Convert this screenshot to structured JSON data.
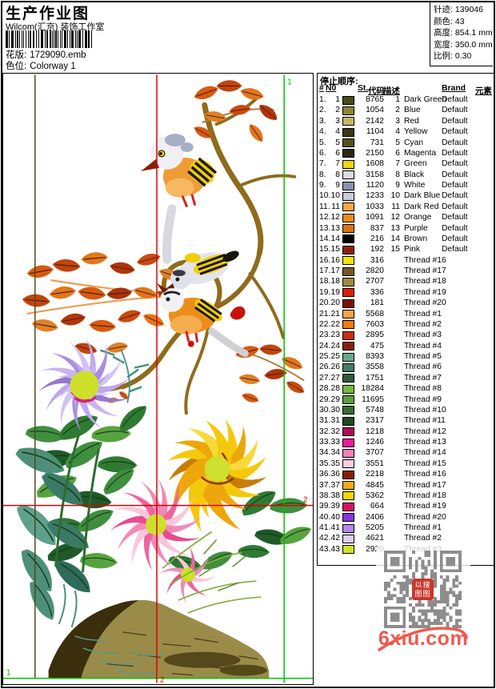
{
  "header": {
    "title": "生产作业图",
    "studio": "Wilcom(汇京) 装饰工作室",
    "design_label": "花版:",
    "design_value": "1729090.emb",
    "colorway_label": "色位:",
    "colorway_value": "Colorway 1",
    "info": [
      {
        "label": "针迹:",
        "value": "139046"
      },
      {
        "label": "颜色:",
        "value": "43"
      },
      {
        "label": "高度:",
        "value": "854.1 mm"
      },
      {
        "label": "宽度:",
        "value": "350.0 mm"
      },
      {
        "label": "比例:",
        "value": "0.30"
      }
    ]
  },
  "canvas": {
    "marker_1": "1",
    "marker_2": "2",
    "guide_green": "#00c300",
    "guide_red": "#dd0000",
    "extent_line_color": "#4f4a20"
  },
  "table": {
    "title": "停止顺序:",
    "columns": [
      "#",
      "N0",
      "St.",
      "代码",
      "描述",
      "Brand",
      "元素"
    ],
    "rows": [
      {
        "ord": "1.",
        "no": "1",
        "sw": "#4d4a1e",
        "st": "8765",
        "code": "1",
        "desc": "Dark Green",
        "brand": "Default"
      },
      {
        "ord": "2.",
        "no": "2",
        "sw": "#8f8431",
        "st": "1054",
        "code": "2",
        "desc": "Blue",
        "brand": "Default"
      },
      {
        "ord": "3.",
        "no": "3",
        "sw": "#c7b566",
        "st": "2142",
        "code": "3",
        "desc": "Red",
        "brand": "Default"
      },
      {
        "ord": "4.",
        "no": "4",
        "sw": "#3a3513",
        "st": "1104",
        "code": "4",
        "desc": "Yellow",
        "brand": "Default"
      },
      {
        "ord": "5.",
        "no": "5",
        "sw": "#565117",
        "st": "731",
        "code": "5",
        "desc": "Cyan",
        "brand": "Default"
      },
      {
        "ord": "6.",
        "no": "6",
        "sw": "#2b2512",
        "st": "2150",
        "code": "6",
        "desc": "Magenta",
        "brand": "Default"
      },
      {
        "ord": "7.",
        "no": "7",
        "sw": "#eed714",
        "st": "1608",
        "code": "7",
        "desc": "Green",
        "brand": "Default"
      },
      {
        "ord": "8.",
        "no": "8",
        "sw": "#dcdcdc",
        "st": "3158",
        "code": "8",
        "desc": "Black",
        "brand": "Default"
      },
      {
        "ord": "9.",
        "no": "9",
        "sw": "#8890ac",
        "st": "1120",
        "code": "9",
        "desc": "White",
        "brand": "Default"
      },
      {
        "ord": "10.",
        "no": "10",
        "sw": "#c9cdd9",
        "st": "1233",
        "code": "10",
        "desc": "Dark Blue",
        "brand": "Default"
      },
      {
        "ord": "11.",
        "no": "11",
        "sw": "#f2a83e",
        "st": "1033",
        "code": "11",
        "desc": "Dark Red",
        "brand": "Default"
      },
      {
        "ord": "12.",
        "no": "12",
        "sw": "#e98d15",
        "st": "1091",
        "code": "12",
        "desc": "Orange",
        "brand": "Default"
      },
      {
        "ord": "13.",
        "no": "13",
        "sw": "#dc7310",
        "st": "837",
        "code": "13",
        "desc": "Purple",
        "brand": "Default"
      },
      {
        "ord": "14.",
        "no": "14",
        "sw": "#000000",
        "st": "216",
        "code": "14",
        "desc": "Brown",
        "brand": "Default"
      },
      {
        "ord": "15.",
        "no": "15",
        "sw": "#8e1f07",
        "st": "192",
        "code": "15",
        "desc": "Pink",
        "brand": "Default"
      },
      {
        "ord": "16.",
        "no": "16",
        "sw": "#f2e50c",
        "st": "316",
        "code": "",
        "desc": "Thread #16",
        "brand": ""
      },
      {
        "ord": "17.",
        "no": "17",
        "sw": "#77571f",
        "st": "2820",
        "code": "",
        "desc": "Thread #17",
        "brand": ""
      },
      {
        "ord": "18.",
        "no": "18",
        "sw": "#9d8c3e",
        "st": "2707",
        "code": "",
        "desc": "Thread #18",
        "brand": ""
      },
      {
        "ord": "19.",
        "no": "19",
        "sw": "#da1e04",
        "st": "336",
        "code": "",
        "desc": "Thread #19",
        "brand": ""
      },
      {
        "ord": "20.",
        "no": "20",
        "sw": "#7c120b",
        "st": "181",
        "code": "",
        "desc": "Thread #20",
        "brand": ""
      },
      {
        "ord": "21.",
        "no": "21",
        "sw": "#f5a24e",
        "st": "5568",
        "code": "",
        "desc": "Thread #1",
        "brand": ""
      },
      {
        "ord": "22.",
        "no": "22",
        "sw": "#ed7c17",
        "st": "7603",
        "code": "",
        "desc": "Thread #2",
        "brand": ""
      },
      {
        "ord": "23.",
        "no": "23",
        "sw": "#ce2c0d",
        "st": "2895",
        "code": "",
        "desc": "Thread #3",
        "brand": ""
      },
      {
        "ord": "24.",
        "no": "24",
        "sw": "#8c1d09",
        "st": "475",
        "code": "",
        "desc": "Thread #4",
        "brand": ""
      },
      {
        "ord": "25.",
        "no": "25",
        "sw": "#67a88c",
        "st": "8393",
        "code": "",
        "desc": "Thread #5",
        "brand": ""
      },
      {
        "ord": "26.",
        "no": "26",
        "sw": "#3f7f62",
        "st": "3558",
        "code": "",
        "desc": "Thread #6",
        "brand": ""
      },
      {
        "ord": "27.",
        "no": "27",
        "sw": "#2d5c38",
        "st": "1751",
        "code": "",
        "desc": "Thread #7",
        "brand": ""
      },
      {
        "ord": "28.",
        "no": "28",
        "sw": "#77b83c",
        "st": "18284",
        "code": "",
        "desc": "Thread #8",
        "brand": ""
      },
      {
        "ord": "29.",
        "no": "29",
        "sw": "#5e9e3f",
        "st": "11695",
        "code": "",
        "desc": "Thread #9",
        "brand": ""
      },
      {
        "ord": "30.",
        "no": "30",
        "sw": "#356f2e",
        "st": "5748",
        "code": "",
        "desc": "Thread #10",
        "brand": ""
      },
      {
        "ord": "31.",
        "no": "31",
        "sw": "#1d4a22",
        "st": "2317",
        "code": "",
        "desc": "Thread #11",
        "brand": ""
      },
      {
        "ord": "32.",
        "no": "32",
        "sw": "#ad0e55",
        "st": "1218",
        "code": "",
        "desc": "Thread #12",
        "brand": ""
      },
      {
        "ord": "33.",
        "no": "33",
        "sw": "#f318a0",
        "st": "1246",
        "code": "",
        "desc": "Thread #13",
        "brand": ""
      },
      {
        "ord": "34.",
        "no": "34",
        "sw": "#f27fb4",
        "st": "3707",
        "code": "",
        "desc": "Thread #14",
        "brand": ""
      },
      {
        "ord": "35.",
        "no": "35",
        "sw": "#f8cede",
        "st": "3551",
        "code": "",
        "desc": "Thread #15",
        "brand": ""
      },
      {
        "ord": "36.",
        "no": "36",
        "sw": "#8c1e07",
        "st": "2218",
        "code": "",
        "desc": "Thread #16",
        "brand": ""
      },
      {
        "ord": "37.",
        "no": "37",
        "sw": "#f0ad17",
        "st": "4845",
        "code": "",
        "desc": "Thread #17",
        "brand": ""
      },
      {
        "ord": "38.",
        "no": "38",
        "sw": "#f5d705",
        "st": "5362",
        "code": "",
        "desc": "Thread #18",
        "brand": ""
      },
      {
        "ord": "39.",
        "no": "39",
        "sw": "#d60f62",
        "st": "664",
        "code": "",
        "desc": "Thread #19",
        "brand": ""
      },
      {
        "ord": "40.",
        "no": "40",
        "sw": "#8a35e2",
        "st": "2406",
        "code": "",
        "desc": "Thread #20",
        "brand": ""
      },
      {
        "ord": "41.",
        "no": "41",
        "sw": "#b289ea",
        "st": "5205",
        "code": "",
        "desc": "Thread #1",
        "brand": ""
      },
      {
        "ord": "42.",
        "no": "42",
        "sw": "#decdf5",
        "st": "4621",
        "code": "",
        "desc": "Thread #2",
        "brand": ""
      },
      {
        "ord": "43.",
        "no": "43",
        "sw": "#cfe32b",
        "st": "2920",
        "code": "",
        "desc": "Thread #3",
        "brand": ""
      }
    ]
  },
  "watermark": {
    "site": "6xiu.com",
    "badge_line1": "以搜",
    "badge_line2": "图图",
    "color": "#ee5a4e"
  }
}
